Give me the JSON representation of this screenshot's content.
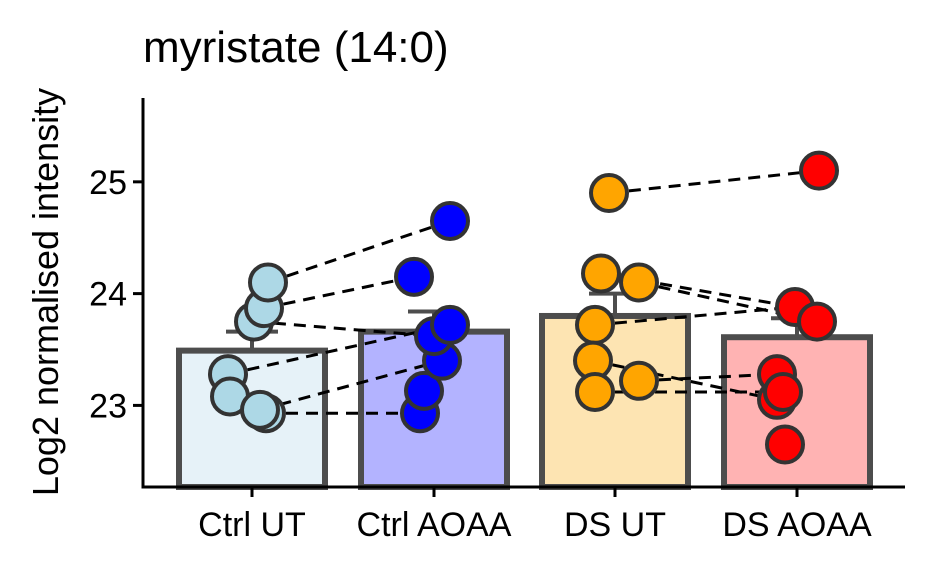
{
  "chart_data": {
    "type": "bar",
    "title": "myristate (14:0)",
    "xlabel": "",
    "ylabel": "Log2 normalised intensity",
    "ylim": [
      22.27,
      25.75
    ],
    "yticks": [
      23,
      24,
      25
    ],
    "grid": false,
    "legend": "none",
    "categories": [
      "Ctrl UT",
      "Ctrl AOAA",
      "DS UT",
      "DS AOAA"
    ],
    "bar_values": [
      23.49,
      23.66,
      23.8,
      23.61
    ],
    "error_upper": [
      23.66,
      23.84,
      24.0,
      23.78
    ],
    "bar_fill": [
      "#e6f2f8",
      "#b3b3ff",
      "#fde4b2",
      "#ffb3b3"
    ],
    "point_fill": [
      "#add8e6",
      "#0000ff",
      "#ffa500",
      "#ff0000"
    ],
    "points": [
      [
        23.28,
        23.08,
        22.93,
        22.96,
        23.75,
        23.87,
        24.1
      ],
      [
        22.93,
        23.13,
        23.4,
        23.62,
        23.72,
        24.15,
        24.65
      ],
      [
        24.9,
        24.18,
        24.1,
        23.72,
        23.4,
        23.22,
        23.12
      ],
      [
        25.1,
        23.88,
        23.75,
        23.28,
        23.05,
        23.12,
        22.65
      ]
    ],
    "pairs": [
      [
        23.08,
        23.62
      ],
      [
        22.93,
        22.93
      ],
      [
        22.96,
        23.4
      ],
      [
        23.28,
        23.72
      ],
      [
        23.75,
        23.62
      ],
      [
        23.87,
        24.15
      ],
      [
        24.1,
        24.65
      ],
      [
        24.9,
        25.1
      ],
      [
        24.18,
        23.88
      ],
      [
        24.1,
        23.75
      ],
      [
        23.72,
        23.88
      ],
      [
        23.4,
        23.05
      ],
      [
        23.22,
        23.28
      ],
      [
        23.12,
        23.12
      ]
    ]
  }
}
